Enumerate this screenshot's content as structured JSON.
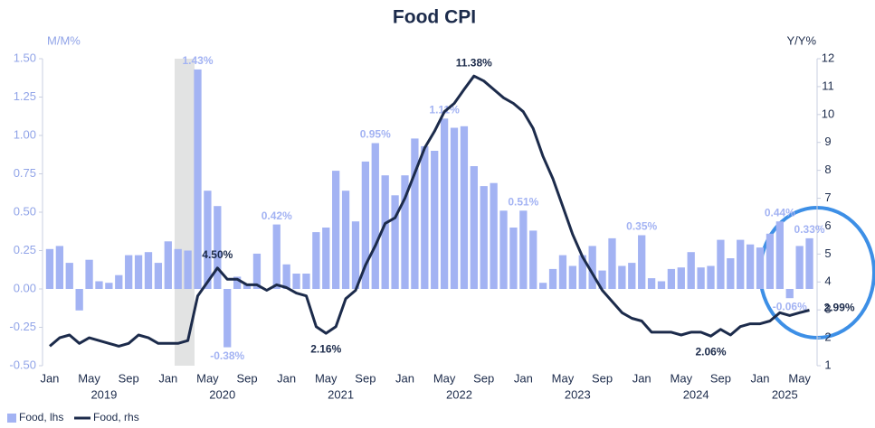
{
  "chart_data": {
    "type": "bar",
    "title": "Food CPI",
    "y_label": "M/M%",
    "y2_label": "Y/Y%",
    "categories": [
      "Jan",
      null,
      null,
      null,
      "May",
      null,
      null,
      null,
      "Sep",
      null,
      null,
      null,
      "Jan",
      null,
      null,
      null,
      "May",
      null,
      null,
      null,
      "Sep",
      null,
      null,
      null,
      "Jan",
      null,
      null,
      null,
      "May",
      null,
      null,
      null,
      "Sep",
      null,
      null,
      null,
      "Jan",
      null,
      null,
      null,
      "May",
      null,
      null,
      null,
      "Sep",
      null,
      null,
      null,
      "Jan",
      null,
      null,
      null,
      "May",
      null,
      null,
      null,
      "Sep",
      null,
      null,
      null,
      "Jan",
      null,
      null,
      null,
      "May",
      null,
      null,
      null,
      "Sep",
      null,
      null,
      null,
      "Jan",
      null,
      null,
      null,
      "May",
      null
    ],
    "years": [
      "2019",
      "2020",
      "2021",
      "2022",
      "2023",
      "2024",
      "2025"
    ],
    "series": [
      {
        "name": "Food, lhs",
        "type": "bar",
        "color": "#a3b3f3",
        "values": [
          0.26,
          0.28,
          0.17,
          -0.14,
          0.19,
          0.05,
          0.04,
          0.09,
          0.22,
          0.22,
          0.24,
          0.17,
          0.31,
          0.26,
          0.25,
          1.43,
          0.64,
          0.54,
          -0.38,
          0.08,
          0.03,
          0.23,
          0.0,
          0.42,
          0.16,
          0.1,
          0.1,
          0.37,
          0.4,
          0.77,
          0.64,
          0.44,
          0.83,
          0.95,
          0.74,
          0.61,
          0.74,
          0.98,
          0.93,
          0.9,
          1.11,
          1.05,
          1.06,
          0.8,
          0.67,
          0.69,
          0.51,
          0.4,
          0.51,
          0.38,
          0.04,
          0.13,
          0.22,
          0.15,
          0.22,
          0.28,
          0.12,
          0.33,
          0.15,
          0.17,
          0.35,
          0.07,
          0.05,
          0.13,
          0.14,
          0.24,
          0.14,
          0.15,
          0.32,
          0.2,
          0.32,
          0.29,
          0.27,
          0.36,
          0.44,
          -0.06,
          0.28,
          0.33
        ],
        "value_labels": [
          null,
          null,
          null,
          null,
          null,
          null,
          null,
          null,
          null,
          null,
          null,
          null,
          null,
          null,
          null,
          "1.43%",
          null,
          null,
          "-0.38%",
          null,
          null,
          null,
          null,
          "0.42%",
          null,
          null,
          null,
          null,
          null,
          null,
          null,
          null,
          null,
          "0.95%",
          null,
          null,
          null,
          null,
          null,
          null,
          "1.11%",
          null,
          null,
          null,
          null,
          null,
          null,
          null,
          "0.51%",
          null,
          null,
          null,
          null,
          null,
          null,
          null,
          null,
          null,
          null,
          null,
          "0.35%",
          null,
          null,
          null,
          null,
          null,
          null,
          null,
          null,
          null,
          null,
          null,
          null,
          null,
          "0.44%",
          "-0.06%",
          null,
          "0.33%"
        ]
      },
      {
        "name": "Food, rhs",
        "type": "line",
        "axis": "y2",
        "color": "#1c2b4b",
        "values": [
          1.7,
          2.0,
          2.1,
          1.8,
          2.0,
          1.9,
          1.8,
          1.7,
          1.8,
          2.1,
          2.0,
          1.8,
          1.8,
          1.8,
          1.9,
          3.5,
          4.0,
          4.5,
          4.1,
          4.1,
          3.9,
          3.9,
          3.7,
          3.9,
          3.8,
          3.6,
          3.5,
          2.4,
          2.16,
          2.4,
          3.4,
          3.7,
          4.6,
          5.3,
          6.1,
          6.3,
          7.0,
          7.9,
          8.8,
          9.4,
          10.1,
          10.4,
          10.9,
          11.38,
          11.2,
          10.9,
          10.6,
          10.4,
          10.1,
          9.5,
          8.5,
          7.7,
          6.7,
          5.7,
          4.9,
          4.3,
          3.7,
          3.3,
          2.9,
          2.7,
          2.6,
          2.2,
          2.2,
          2.2,
          2.1,
          2.2,
          2.2,
          2.06,
          2.3,
          2.1,
          2.4,
          2.5,
          2.5,
          2.6,
          2.9,
          2.8,
          2.9,
          2.99
        ],
        "value_labels": [
          null,
          null,
          null,
          null,
          null,
          null,
          null,
          null,
          null,
          null,
          null,
          null,
          null,
          null,
          null,
          null,
          null,
          "4.50%",
          null,
          null,
          null,
          null,
          null,
          null,
          null,
          null,
          null,
          null,
          "2.16%",
          null,
          null,
          null,
          null,
          null,
          null,
          null,
          null,
          null,
          null,
          null,
          null,
          null,
          null,
          "11.38%",
          null,
          null,
          null,
          null,
          null,
          null,
          null,
          null,
          null,
          null,
          null,
          null,
          null,
          null,
          null,
          null,
          null,
          null,
          null,
          null,
          null,
          null,
          null,
          "2.06%",
          null,
          null,
          null,
          null,
          null,
          null,
          null,
          null,
          null,
          "2.99%"
        ]
      }
    ],
    "ylim": [
      -0.5,
      1.5
    ],
    "yticks": [
      {
        "value": 1.5,
        "label": "1.50"
      },
      1.25,
      {
        "value": 1,
        "label": "1.00"
      },
      0.75,
      {
        "value": 0.5,
        "label": "0.50"
      },
      0.25,
      {
        "value": 0,
        "label": "0.00"
      },
      -0.25,
      {
        "value": -0.5,
        "label": "-0.50"
      }
    ],
    "y2lim": [
      1,
      12
    ],
    "y2ticks": [
      1,
      2,
      3,
      4,
      5,
      6,
      7,
      8,
      9,
      10,
      11,
      12
    ],
    "legend": "bottom-left"
  }
}
